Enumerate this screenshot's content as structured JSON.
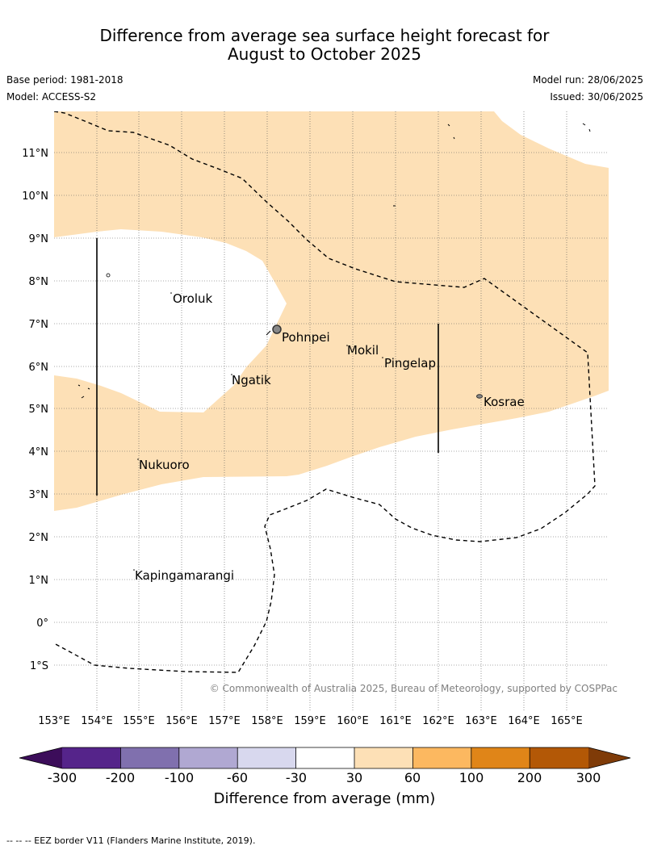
{
  "header": {
    "title_line1": "Difference from average sea surface height forecast for",
    "title_line2": "August to October 2025",
    "base_period": "Base period: 1981-2018",
    "model": "Model: ACCESS-S2",
    "model_run": "Model run: 28/06/2025",
    "issued": "Issued: 30/06/2025"
  },
  "map": {
    "lat_labels": [
      "11°N",
      "10°N",
      "9°N",
      "8°N",
      "7°N",
      "6°N",
      "5°N",
      "4°N",
      "3°N",
      "2°N",
      "1°N",
      "0°",
      "1°S"
    ],
    "lon_labels": [
      "153°E",
      "154°E",
      "155°E",
      "156°E",
      "157°E",
      "158°E",
      "159°E",
      "160°E",
      "161°E",
      "162°E",
      "163°E",
      "164°E",
      "165°E"
    ],
    "places": [
      {
        "name": "Oroluk"
      },
      {
        "name": "Pohnpei"
      },
      {
        "name": "Mokil"
      },
      {
        "name": "Pingelap"
      },
      {
        "name": "Ngatik"
      },
      {
        "name": "Kosrae"
      },
      {
        "name": "Nukuoro"
      },
      {
        "name": "Kapingamarangi"
      }
    ],
    "copyright": "© Commonwealth of Australia 2025, Bureau of Meteorology, supported by COSPPac",
    "fill_color_30_60": "#fde0b6"
  },
  "colorbar": {
    "title": "Difference from average (mm)",
    "ticks": [
      "-300",
      "-200",
      "-100",
      "-60",
      "-30",
      "30",
      "60",
      "100",
      "200",
      "300"
    ],
    "colors": [
      "#3c0d5a",
      "#55248a",
      "#8070ae",
      "#b0a8d2",
      "#d8d8ee",
      "#ffffff",
      "#fde0b6",
      "#fcb860",
      "#e08518",
      "#b35806",
      "#7f3b08"
    ]
  },
  "footer": {
    "eez_note": "-- -- -- EEZ border V11 (Flanders Marine Institute, 2019)."
  }
}
